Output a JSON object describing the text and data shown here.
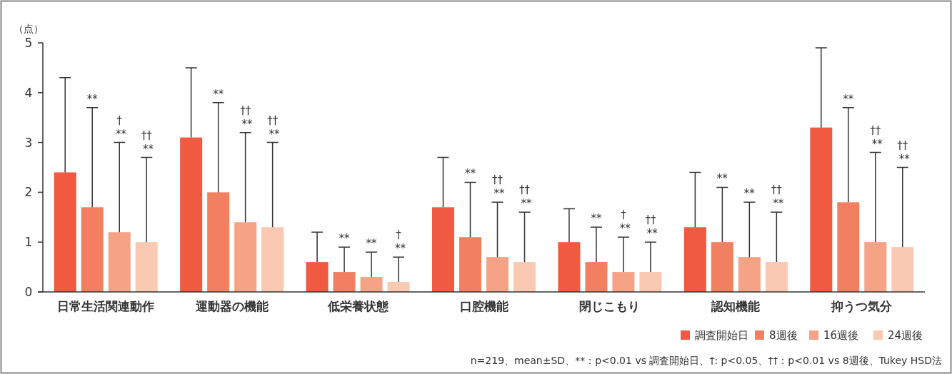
{
  "chart_data": {
    "type": "bar",
    "ylabel": "（点）",
    "categories": [
      "日常生活関連動作",
      "運動器の機能",
      "低栄養状態",
      "口腔機能",
      "閉じこもり",
      "認知機能",
      "抑うつ気分"
    ],
    "series": [
      {
        "name": "調査開始日",
        "color": "#f05a40",
        "values": [
          2.4,
          3.1,
          0.6,
          1.7,
          1.0,
          1.3,
          3.3
        ],
        "errors": [
          [
            2.4,
            4.3
          ],
          [
            3.1,
            4.5
          ],
          [
            0.6,
            1.2
          ],
          [
            1.7,
            2.7
          ],
          [
            1.0,
            1.67
          ],
          [
            1.3,
            2.4
          ],
          [
            3.3,
            4.9
          ]
        ]
      },
      {
        "name": "8週後",
        "color": "#f27f60",
        "values": [
          1.7,
          2.0,
          0.4,
          1.1,
          0.6,
          1.0,
          1.8
        ],
        "errors": [
          [
            1.7,
            3.7
          ],
          [
            2.0,
            3.8
          ],
          [
            0.4,
            0.9
          ],
          [
            1.1,
            2.2
          ],
          [
            0.6,
            1.3
          ],
          [
            1.0,
            2.1
          ],
          [
            1.8,
            3.7
          ]
        ]
      },
      {
        "name": "16週後",
        "color": "#f5a285",
        "values": [
          1.2,
          1.4,
          0.3,
          0.7,
          0.4,
          0.7,
          1.0
        ],
        "errors": [
          [
            1.2,
            3.0
          ],
          [
            1.4,
            3.2
          ],
          [
            0.3,
            0.8
          ],
          [
            0.7,
            1.8
          ],
          [
            0.4,
            1.1
          ],
          [
            0.7,
            1.8
          ],
          [
            1.0,
            2.8
          ]
        ]
      },
      {
        "name": "24週後",
        "color": "#f9c9b2",
        "values": [
          1.0,
          1.3,
          0.2,
          0.6,
          0.4,
          0.6,
          0.9
        ],
        "errors": [
          [
            1.0,
            2.7
          ],
          [
            1.3,
            3.0
          ],
          [
            0.2,
            0.7
          ],
          [
            0.6,
            1.6
          ],
          [
            0.4,
            1.0
          ],
          [
            0.6,
            1.6
          ],
          [
            0.9,
            2.5
          ]
        ]
      }
    ],
    "ylim": [
      0,
      5
    ],
    "yticks": [
      0,
      1,
      2,
      3,
      4,
      5
    ],
    "grid": false,
    "legend": "bottom right",
    "annotations": [
      "**",
      "† **",
      "†† **",
      "**",
      "†† **",
      "†† **",
      "**",
      "**",
      "† **",
      "**",
      "†† **",
      "†† **",
      "**",
      "† **",
      "†† **",
      "**",
      "**",
      "†† **",
      "**",
      "†† **",
      "†† **",
      "n=219、mean±SD、**：p<0.01 vs 調査開始日、†: p<0.05、††：p<0.01 vs 8週後、Tukey HSD法"
    ]
  }
}
